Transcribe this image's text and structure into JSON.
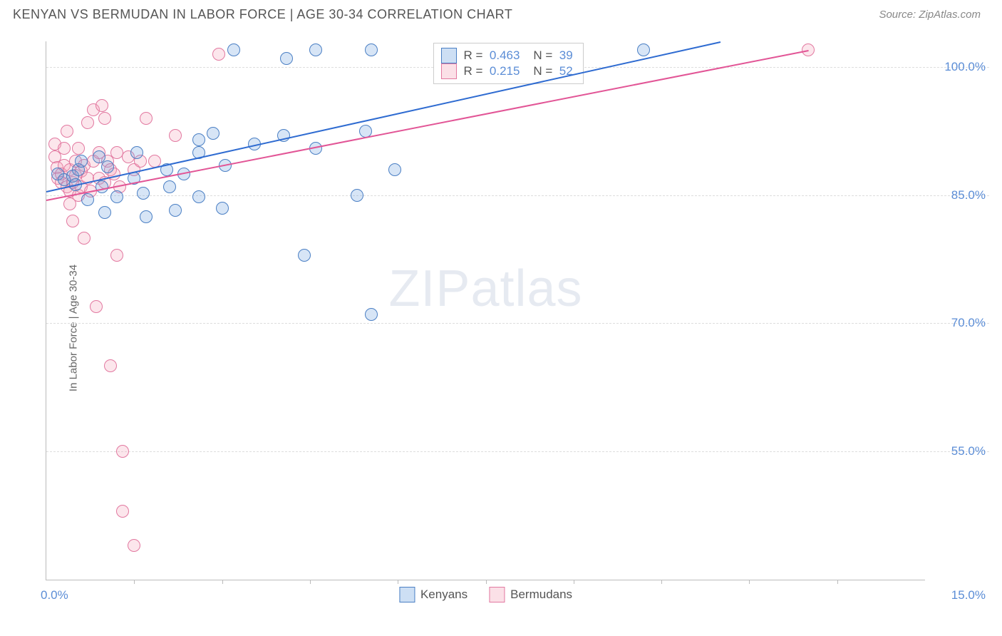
{
  "header": {
    "title": "KENYAN VS BERMUDAN IN LABOR FORCE | AGE 30-34 CORRELATION CHART",
    "source": "Source: ZipAtlas.com"
  },
  "chart": {
    "type": "scatter",
    "y_axis_label": "In Labor Force | Age 30-34",
    "xlim": [
      0,
      15
    ],
    "ylim": [
      40,
      103
    ],
    "x_origin_label": "0.0%",
    "x_end_label": "15.0%",
    "y_ticks": [
      55.0,
      70.0,
      85.0,
      100.0
    ],
    "y_tick_labels": [
      "55.0%",
      "70.0%",
      "85.0%",
      "100.0%"
    ],
    "x_minor_ticks": [
      1.5,
      3.0,
      4.5,
      6.0,
      7.5,
      9.0,
      10.5,
      12.0,
      13.5
    ],
    "background_color": "#ffffff",
    "grid_color": "#dddddd",
    "axis_color": "#bbbbbb",
    "point_radius": 9,
    "point_stroke_width": 1.5,
    "point_fill_opacity": 0.28,
    "trendline_width": 2,
    "series": [
      {
        "name": "Kenyans",
        "color": "#6fa3e0",
        "stroke": "#4a7fc4",
        "trend_color": "#2e6bd1",
        "r": "0.463",
        "n": "39",
        "trend": {
          "x1": 0.0,
          "y1": 85.5,
          "x2": 11.5,
          "y2": 103.0
        },
        "points": [
          [
            0.2,
            87.5
          ],
          [
            0.3,
            86.8
          ],
          [
            0.45,
            87.2
          ],
          [
            0.55,
            88.0
          ],
          [
            0.5,
            86.2
          ],
          [
            0.6,
            89.0
          ],
          [
            0.9,
            89.5
          ],
          [
            1.05,
            88.3
          ],
          [
            0.95,
            86.0
          ],
          [
            0.7,
            84.5
          ],
          [
            1.0,
            83.0
          ],
          [
            1.2,
            84.8
          ],
          [
            1.55,
            90.0
          ],
          [
            1.5,
            87.0
          ],
          [
            1.65,
            85.2
          ],
          [
            1.7,
            82.5
          ],
          [
            2.05,
            88.0
          ],
          [
            2.1,
            86.0
          ],
          [
            2.2,
            83.2
          ],
          [
            2.35,
            87.5
          ],
          [
            2.6,
            91.5
          ],
          [
            2.6,
            90.0
          ],
          [
            2.6,
            84.8
          ],
          [
            2.85,
            92.2
          ],
          [
            3.05,
            88.5
          ],
          [
            3.0,
            83.5
          ],
          [
            3.2,
            102.0
          ],
          [
            3.55,
            91.0
          ],
          [
            4.05,
            92.0
          ],
          [
            4.1,
            101.0
          ],
          [
            4.6,
            90.5
          ],
          [
            4.4,
            78.0
          ],
          [
            4.6,
            102.0
          ],
          [
            5.3,
            85.0
          ],
          [
            5.55,
            102.0
          ],
          [
            5.45,
            92.5
          ],
          [
            5.55,
            71.0
          ],
          [
            5.95,
            88.0
          ],
          [
            10.2,
            102.0
          ]
        ]
      },
      {
        "name": "Bermudans",
        "color": "#f3a6bb",
        "stroke": "#e278a0",
        "trend_color": "#e25596",
        "r": "0.215",
        "n": "52",
        "trend": {
          "x1": 0.0,
          "y1": 84.5,
          "x2": 13.0,
          "y2": 102.0
        },
        "points": [
          [
            0.15,
            91.0
          ],
          [
            0.15,
            89.5
          ],
          [
            0.18,
            88.2
          ],
          [
            0.2,
            87.0
          ],
          [
            0.25,
            87.5
          ],
          [
            0.25,
            86.5
          ],
          [
            0.3,
            88.5
          ],
          [
            0.3,
            90.5
          ],
          [
            0.35,
            92.5
          ],
          [
            0.35,
            86.0
          ],
          [
            0.4,
            88.0
          ],
          [
            0.4,
            85.5
          ],
          [
            0.4,
            84.0
          ],
          [
            0.45,
            82.0
          ],
          [
            0.45,
            86.5
          ],
          [
            0.5,
            89.0
          ],
          [
            0.5,
            87.3
          ],
          [
            0.55,
            90.5
          ],
          [
            0.55,
            85.0
          ],
          [
            0.6,
            86.0
          ],
          [
            0.6,
            87.8
          ],
          [
            0.65,
            88.5
          ],
          [
            0.65,
            80.0
          ],
          [
            0.7,
            93.5
          ],
          [
            0.7,
            87.0
          ],
          [
            0.75,
            85.5
          ],
          [
            0.8,
            89.0
          ],
          [
            0.8,
            95.0
          ],
          [
            0.85,
            72.0
          ],
          [
            0.9,
            87.0
          ],
          [
            0.9,
            90.0
          ],
          [
            0.95,
            95.5
          ],
          [
            1.0,
            94.0
          ],
          [
            1.0,
            86.5
          ],
          [
            1.05,
            89.0
          ],
          [
            1.1,
            88.0
          ],
          [
            1.1,
            65.0
          ],
          [
            1.15,
            87.5
          ],
          [
            1.2,
            90.0
          ],
          [
            1.2,
            78.0
          ],
          [
            1.25,
            86.0
          ],
          [
            1.3,
            55.0
          ],
          [
            1.3,
            48.0
          ],
          [
            1.4,
            89.5
          ],
          [
            1.5,
            88.0
          ],
          [
            1.5,
            44.0
          ],
          [
            1.6,
            89.0
          ],
          [
            1.7,
            94.0
          ],
          [
            1.85,
            89.0
          ],
          [
            2.2,
            92.0
          ],
          [
            2.95,
            101.5
          ],
          [
            13.0,
            102.0
          ]
        ]
      }
    ],
    "legend_box": {
      "r_label": "R =",
      "n_label": "N ="
    },
    "series_legend": [
      "Kenyans",
      "Bermudans"
    ],
    "watermark": "ZIPatlas"
  }
}
